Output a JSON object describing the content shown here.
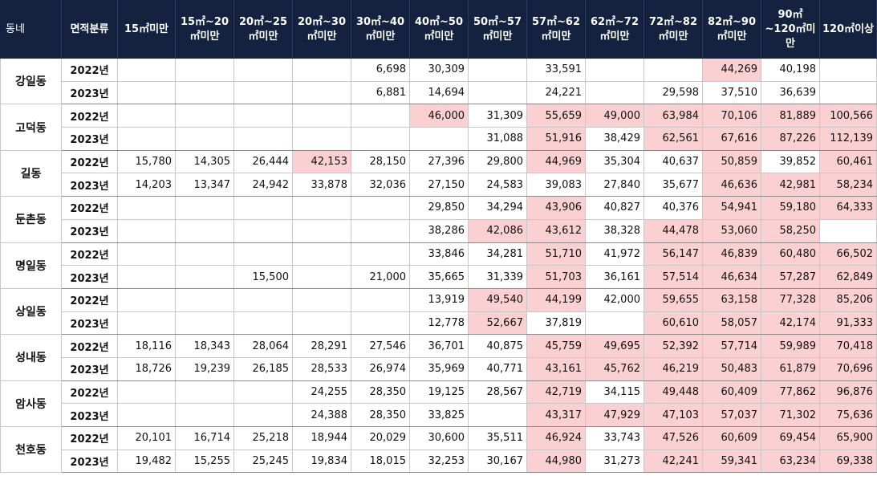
{
  "headers": [
    "동네",
    "면적분류",
    "15㎡미만",
    "15㎡~20㎡미만",
    "20㎡~25㎡미만",
    "20㎡~30㎡미만",
    "30㎡~40㎡미만",
    "40㎡~50㎡미만",
    "50㎡~57㎡미만",
    "57㎡~62㎡미만",
    "62㎡~72㎡미만",
    "72㎡~82㎡미만",
    "82㎡~90㎡미만",
    "90㎡~120㎡미만",
    "120㎡이상"
  ],
  "highlight_color": "#fbd0d3",
  "header_bg": "#14223f",
  "rows": [
    {
      "dong": "강일동",
      "years": [
        {
          "year": "2022년",
          "values": [
            "",
            "",
            "",
            "",
            "6,698",
            "30,309",
            "",
            "33,591",
            "",
            "",
            "44,269",
            "40,198",
            ""
          ],
          "hl": [
            10
          ]
        },
        {
          "year": "2023년",
          "values": [
            "",
            "",
            "",
            "",
            "6,881",
            "14,694",
            "",
            "24,221",
            "",
            "29,598",
            "37,510",
            "36,639",
            ""
          ],
          "hl": []
        }
      ]
    },
    {
      "dong": "고덕동",
      "years": [
        {
          "year": "2022년",
          "values": [
            "",
            "",
            "",
            "",
            "",
            "46,000",
            "31,309",
            "55,659",
            "49,000",
            "63,984",
            "70,106",
            "81,889",
            "100,566"
          ],
          "hl": [
            5,
            7,
            8,
            9,
            10,
            11,
            12
          ]
        },
        {
          "year": "2023년",
          "values": [
            "",
            "",
            "",
            "",
            "",
            "",
            "31,088",
            "51,916",
            "38,429",
            "62,561",
            "67,616",
            "87,226",
            "112,139"
          ],
          "hl": [
            7,
            9,
            10,
            11,
            12
          ]
        }
      ]
    },
    {
      "dong": "길동",
      "years": [
        {
          "year": "2022년",
          "values": [
            "15,780",
            "14,305",
            "26,444",
            "42,153",
            "28,150",
            "27,396",
            "29,800",
            "44,969",
            "35,304",
            "40,637",
            "50,859",
            "39,852",
            "60,461"
          ],
          "hl": [
            3,
            7,
            10,
            12
          ]
        },
        {
          "year": "2023년",
          "values": [
            "14,203",
            "13,347",
            "24,942",
            "33,878",
            "32,036",
            "27,150",
            "24,583",
            "39,083",
            "27,840",
            "35,677",
            "46,636",
            "42,981",
            "58,234"
          ],
          "hl": [
            10,
            11,
            12
          ]
        }
      ]
    },
    {
      "dong": "둔촌동",
      "years": [
        {
          "year": "2022년",
          "values": [
            "",
            "",
            "",
            "",
            "",
            "29,850",
            "34,294",
            "43,906",
            "40,827",
            "40,376",
            "54,941",
            "59,180",
            "64,333"
          ],
          "hl": [
            7,
            10,
            11,
            12
          ]
        },
        {
          "year": "2023년",
          "values": [
            "",
            "",
            "",
            "",
            "",
            "38,286",
            "42,086",
            "43,612",
            "38,328",
            "44,478",
            "53,060",
            "58,250",
            ""
          ],
          "hl": [
            6,
            7,
            9,
            10,
            11
          ]
        }
      ]
    },
    {
      "dong": "명일동",
      "years": [
        {
          "year": "2022년",
          "values": [
            "",
            "",
            "",
            "",
            "",
            "33,846",
            "34,281",
            "51,710",
            "41,972",
            "56,147",
            "46,839",
            "60,480",
            "66,502"
          ],
          "hl": [
            7,
            9,
            10,
            11,
            12
          ]
        },
        {
          "year": "2023년",
          "values": [
            "",
            "",
            "15,500",
            "",
            "21,000",
            "35,665",
            "31,339",
            "51,703",
            "36,161",
            "57,514",
            "46,634",
            "57,287",
            "62,849"
          ],
          "hl": [
            7,
            9,
            10,
            11,
            12
          ]
        }
      ]
    },
    {
      "dong": "상일동",
      "years": [
        {
          "year": "2022년",
          "values": [
            "",
            "",
            "",
            "",
            "",
            "13,919",
            "49,540",
            "44,199",
            "42,000",
            "59,655",
            "63,158",
            "77,328",
            "85,206"
          ],
          "hl": [
            6,
            7,
            9,
            10,
            11,
            12
          ]
        },
        {
          "year": "2023년",
          "values": [
            "",
            "",
            "",
            "",
            "",
            "12,778",
            "52,667",
            "37,819",
            "",
            "60,610",
            "58,057",
            "42,174",
            "91,333"
          ],
          "hl": [
            6,
            9,
            10,
            11,
            12
          ]
        }
      ]
    },
    {
      "dong": "성내동",
      "years": [
        {
          "year": "2022년",
          "values": [
            "18,116",
            "18,343",
            "28,064",
            "28,291",
            "27,546",
            "36,701",
            "40,875",
            "45,759",
            "49,695",
            "52,392",
            "57,714",
            "59,989",
            "70,418"
          ],
          "hl": [
            7,
            8,
            9,
            10,
            11,
            12
          ]
        },
        {
          "year": "2023년",
          "values": [
            "18,726",
            "19,239",
            "26,185",
            "28,533",
            "26,974",
            "35,969",
            "40,771",
            "43,161",
            "45,762",
            "46,219",
            "50,483",
            "61,879",
            "70,696"
          ],
          "hl": [
            7,
            8,
            9,
            10,
            11,
            12
          ]
        }
      ]
    },
    {
      "dong": "암사동",
      "years": [
        {
          "year": "2022년",
          "values": [
            "",
            "",
            "",
            "24,255",
            "28,350",
            "19,125",
            "28,567",
            "42,719",
            "34,115",
            "49,448",
            "60,409",
            "77,862",
            "96,876"
          ],
          "hl": [
            7,
            9,
            10,
            11,
            12
          ]
        },
        {
          "year": "2023년",
          "values": [
            "",
            "",
            "",
            "24,388",
            "28,350",
            "33,825",
            "",
            "43,317",
            "47,929",
            "47,103",
            "57,037",
            "71,302",
            "75,636"
          ],
          "hl": [
            7,
            8,
            9,
            10,
            11,
            12
          ]
        }
      ]
    },
    {
      "dong": "천호동",
      "years": [
        {
          "year": "2022년",
          "values": [
            "20,101",
            "16,714",
            "25,218",
            "18,944",
            "20,029",
            "30,600",
            "35,511",
            "46,924",
            "33,743",
            "47,526",
            "60,609",
            "69,454",
            "65,900"
          ],
          "hl": [
            7,
            9,
            10,
            11,
            12
          ]
        },
        {
          "year": "2023년",
          "values": [
            "19,482",
            "15,255",
            "25,245",
            "19,834",
            "18,015",
            "32,253",
            "30,167",
            "44,980",
            "31,273",
            "42,241",
            "59,341",
            "63,234",
            "69,338"
          ],
          "hl": [
            7,
            9,
            10,
            11,
            12
          ]
        }
      ]
    }
  ]
}
